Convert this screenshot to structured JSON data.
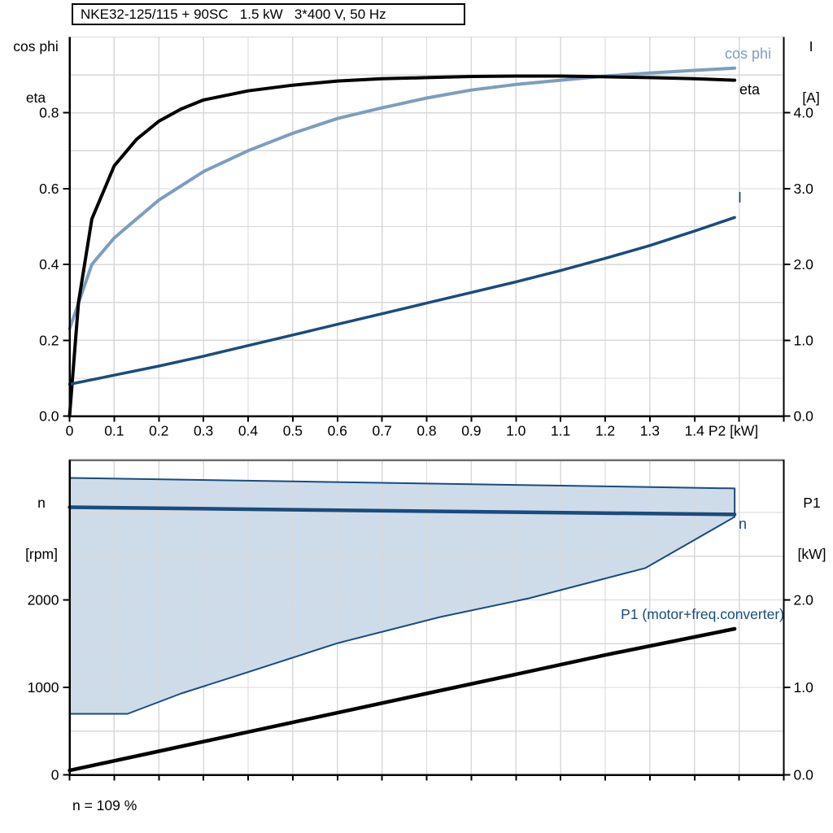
{
  "chart_data": [
    {
      "id": "motor-performance",
      "type": "line",
      "title": "NKE32-125/115 + 90SC   1.5 kW   3*400 V, 50 Hz",
      "x_axis": {
        "min": 0,
        "max": 1.6,
        "grid_step": 0.1,
        "ticks": [
          {
            "label": "0",
            "value": 0
          },
          {
            "label": "0.1",
            "value": 0.1
          },
          {
            "label": "0.2",
            "value": 0.2
          },
          {
            "label": "0.3",
            "value": 0.3
          },
          {
            "label": "0.4",
            "value": 0.4
          },
          {
            "label": "0.5",
            "value": 0.5
          },
          {
            "label": "0.6",
            "value": 0.6
          },
          {
            "label": "0.7",
            "value": 0.7
          },
          {
            "label": "0.8",
            "value": 0.8
          },
          {
            "label": "0.9",
            "value": 0.9
          },
          {
            "label": "1.0",
            "value": 1.0
          },
          {
            "label": "1.1",
            "value": 1.1
          },
          {
            "label": "1.2",
            "value": 1.2
          },
          {
            "label": "1.3",
            "value": 1.3
          },
          {
            "label": "1.4",
            "value": 1.4
          }
        ],
        "end_label": "P2 [kW]",
        "end_label_value": 1.487
      },
      "y_left": {
        "title_line1": "cos phi",
        "title_line2": "eta",
        "min": 0,
        "max": 1.0,
        "grid_step": 0.1,
        "ticks": [
          {
            "label": "0.0",
            "value": 0
          },
          {
            "label": "0.2",
            "value": 0.2
          },
          {
            "label": "0.4",
            "value": 0.4
          },
          {
            "label": "0.6",
            "value": 0.6
          },
          {
            "label": "0.8",
            "value": 0.8
          }
        ]
      },
      "y_right": {
        "title_line1": "I",
        "title_line2": "[A]",
        "min": 0,
        "max": 5.0,
        "label_color": "#1A4B7E",
        "ticks": [
          {
            "label": "0.0",
            "value": 0
          },
          {
            "label": "1.0",
            "value": 1
          },
          {
            "label": "2.0",
            "value": 2
          },
          {
            "label": "3.0",
            "value": 3
          },
          {
            "label": "4.0",
            "value": 4
          }
        ]
      },
      "series": [
        {
          "name": "cos phi",
          "axis": "left",
          "color": "#7D9DBE",
          "width": 4,
          "points": [
            [
              0,
              0.23
            ],
            [
              0.05,
              0.4
            ],
            [
              0.1,
              0.47
            ],
            [
              0.15,
              0.52
            ],
            [
              0.2,
              0.57
            ],
            [
              0.3,
              0.645
            ],
            [
              0.4,
              0.7
            ],
            [
              0.5,
              0.746
            ],
            [
              0.6,
              0.785
            ],
            [
              0.7,
              0.813
            ],
            [
              0.8,
              0.839
            ],
            [
              0.9,
              0.86
            ],
            [
              1.0,
              0.875
            ],
            [
              1.1,
              0.886
            ],
            [
              1.2,
              0.897
            ],
            [
              1.3,
              0.905
            ],
            [
              1.4,
              0.912
            ],
            [
              1.49,
              0.918
            ]
          ]
        },
        {
          "name": "eta",
          "axis": "left",
          "color": "#000000",
          "width": 4,
          "points": [
            [
              0,
              0
            ],
            [
              0.02,
              0.3
            ],
            [
              0.05,
              0.52
            ],
            [
              0.1,
              0.66
            ],
            [
              0.15,
              0.73
            ],
            [
              0.2,
              0.778
            ],
            [
              0.25,
              0.81
            ],
            [
              0.3,
              0.834
            ],
            [
              0.4,
              0.858
            ],
            [
              0.5,
              0.873
            ],
            [
              0.6,
              0.884
            ],
            [
              0.7,
              0.89
            ],
            [
              0.8,
              0.893
            ],
            [
              0.9,
              0.896
            ],
            [
              1.0,
              0.897
            ],
            [
              1.1,
              0.897
            ],
            [
              1.2,
              0.895
            ],
            [
              1.3,
              0.893
            ],
            [
              1.4,
              0.89
            ],
            [
              1.49,
              0.886
            ]
          ]
        },
        {
          "name": "I",
          "axis": "right",
          "color": "#1A4B7E",
          "width": 3.5,
          "points": [
            [
              0,
              0.42
            ],
            [
              0.1,
              0.54
            ],
            [
              0.2,
              0.66
            ],
            [
              0.3,
              0.79
            ],
            [
              0.4,
              0.93
            ],
            [
              0.5,
              1.07
            ],
            [
              0.6,
              1.21
            ],
            [
              0.7,
              1.35
            ],
            [
              0.8,
              1.49
            ],
            [
              0.9,
              1.63
            ],
            [
              1.0,
              1.77
            ],
            [
              1.1,
              1.92
            ],
            [
              1.2,
              2.08
            ],
            [
              1.3,
              2.25
            ],
            [
              1.4,
              2.44
            ],
            [
              1.49,
              2.62
            ]
          ]
        }
      ]
    },
    {
      "id": "speed-and-input-power",
      "type": "line",
      "x_axis": {
        "min": 0,
        "max": 1.6,
        "grid_step": 0.1,
        "ticks": []
      },
      "y_left": {
        "title_line1": "n",
        "title_line2": "[rpm]",
        "min": 0,
        "max": 3600,
        "grid_step": 500,
        "ticks": [
          {
            "label": "0",
            "value": 0
          },
          {
            "label": "1000",
            "value": 1000
          },
          {
            "label": "2000",
            "value": 2000
          }
        ]
      },
      "y_right": {
        "title_line1": "P1",
        "title_line2": "[kW]",
        "min": 0,
        "max": 3.6,
        "ticks": [
          {
            "label": "0.0",
            "value": 0
          },
          {
            "label": "1.0",
            "value": 1
          },
          {
            "label": "2.0",
            "value": 2
          }
        ]
      },
      "region": {
        "name": "speed-control-range",
        "fill": "#CEDCEA",
        "stroke": "#1A4B7E",
        "upper": [
          [
            0,
            3395
          ],
          [
            0.5,
            3355
          ],
          [
            1.0,
            3315
          ],
          [
            1.49,
            3275
          ]
        ],
        "lower": [
          [
            0,
            698
          ],
          [
            0.13,
            698
          ],
          [
            0.25,
            930
          ],
          [
            0.4,
            1175
          ],
          [
            0.6,
            1505
          ],
          [
            0.83,
            1805
          ],
          [
            1.03,
            2020
          ],
          [
            1.29,
            2365
          ],
          [
            1.49,
            2950
          ]
        ]
      },
      "series": [
        {
          "name": "n",
          "axis": "left",
          "color": "#1A4B7E",
          "width": 4.5,
          "points": [
            [
              0,
              3060
            ],
            [
              0.5,
              3032
            ],
            [
              1.0,
              3004
            ],
            [
              1.49,
              2978
            ]
          ]
        },
        {
          "name": "P1 (motor+freq.converter)",
          "axis": "right",
          "color": "#000000",
          "width": 4.5,
          "points": [
            [
              0,
              0.05
            ],
            [
              0.2,
              0.27
            ],
            [
              0.4,
              0.49
            ],
            [
              0.6,
              0.71
            ],
            [
              0.8,
              0.93
            ],
            [
              1.0,
              1.15
            ],
            [
              1.2,
              1.37
            ],
            [
              1.49,
              1.67
            ]
          ]
        }
      ],
      "note": "n = 109 %"
    }
  ],
  "palette": {
    "steel_blue": "#7D9DBE",
    "navy": "#1A4B7E",
    "area_fill": "#CEDCEA",
    "grid": "#D8D8D8",
    "axis": "#000000",
    "top_border_bottom_chart": "#6E6E6E"
  }
}
